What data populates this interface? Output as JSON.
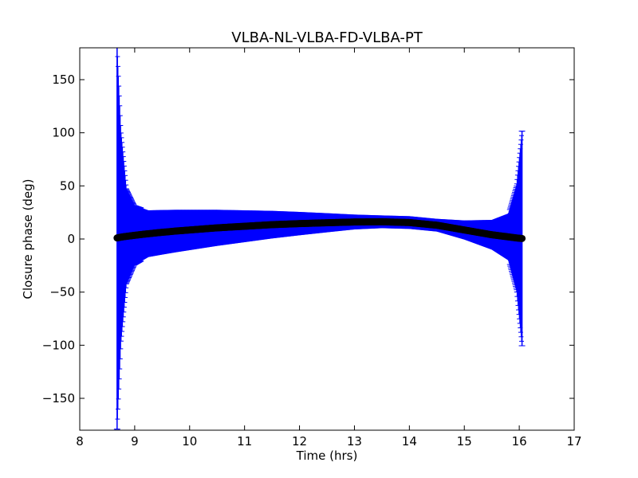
{
  "chart_data": {
    "type": "scatter",
    "title": "VLBA-NL-VLBA-FD-VLBA-PT",
    "xlabel": "Time (hrs)",
    "ylabel": "Closure phase (deg)",
    "xlim": [
      8,
      17
    ],
    "ylim": [
      -180,
      180
    ],
    "xticks": [
      8,
      9,
      10,
      11,
      12,
      13,
      14,
      15,
      16,
      17
    ],
    "yticks": [
      -150,
      -100,
      -50,
      0,
      50,
      100,
      150
    ],
    "xtick_labels": [
      "8",
      "9",
      "10",
      "11",
      "12",
      "13",
      "14",
      "15",
      "16",
      "17"
    ],
    "ytick_labels": [
      "−150",
      "−100",
      "−50",
      "0",
      "50",
      "100",
      "150"
    ],
    "grid": false,
    "legend": "none",
    "series": [
      {
        "marker": "circle",
        "color": "#000000",
        "errorbar_color": "#0000ff",
        "x": [
          8.68,
          8.75,
          8.85,
          9.0,
          9.25,
          9.5,
          9.75,
          10.0,
          10.5,
          11.0,
          11.5,
          12.0,
          12.5,
          13.0,
          13.5,
          14.0,
          14.5,
          15.0,
          15.5,
          15.8,
          15.95,
          16.05
        ],
        "y": [
          1.0,
          1.8,
          2.5,
          3.5,
          5.0,
          6.3,
          7.5,
          8.5,
          10.5,
          12.0,
          13.5,
          14.5,
          15.3,
          16.0,
          16.2,
          15.5,
          13.0,
          8.5,
          4.0,
          2.0,
          1.0,
          0.5
        ],
        "yerr": [
          180,
          100,
          45,
          28,
          22,
          21,
          20,
          19,
          17,
          15,
          13,
          11,
          9,
          7,
          6,
          6,
          6,
          9,
          14,
          22,
          50,
          101
        ]
      }
    ]
  }
}
